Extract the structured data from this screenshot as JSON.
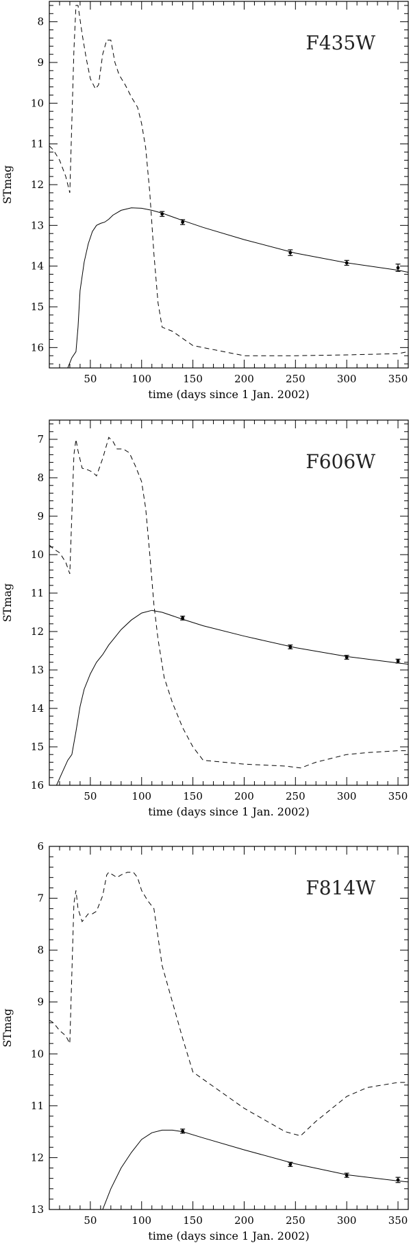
{
  "chart_data": [
    {
      "type": "line",
      "title": "",
      "annotation": "F435W",
      "xlabel": "time (days since 1 Jan. 2002)",
      "ylabel": "STmag",
      "xlim": [
        10,
        360
      ],
      "ylim": [
        16.5,
        7.5
      ],
      "y_inverted": true,
      "x_ticks": [
        50,
        100,
        150,
        200,
        250,
        300,
        350
      ],
      "y_ticks": [
        8,
        9,
        10,
        11,
        12,
        13,
        14,
        15,
        16
      ],
      "grid": false,
      "series": [
        {
          "style": "solid",
          "x": [
            28,
            32,
            36,
            38,
            40,
            44,
            48,
            52,
            56,
            60,
            64,
            68,
            72,
            80,
            90,
            100,
            110,
            120,
            140,
            160,
            200,
            250,
            300,
            350,
            360
          ],
          "values": [
            16.5,
            16.25,
            16.1,
            15.5,
            14.6,
            13.9,
            13.45,
            13.15,
            13.0,
            12.95,
            12.92,
            12.85,
            12.75,
            12.63,
            12.57,
            12.58,
            12.63,
            12.7,
            12.88,
            13.05,
            13.35,
            13.68,
            13.92,
            14.1,
            14.15
          ]
        },
        {
          "style": "dashed",
          "x": [
            10,
            14,
            20,
            26,
            30,
            34,
            36,
            38,
            42,
            46,
            50,
            55,
            58,
            62,
            66,
            70,
            74,
            78,
            84,
            90,
            96,
            100,
            104,
            108,
            112,
            116,
            120,
            130,
            150,
            200,
            250,
            300,
            350,
            360
          ],
          "values": [
            11.05,
            11.15,
            11.4,
            11.8,
            12.2,
            8.7,
            7.6,
            7.6,
            8.3,
            8.9,
            9.4,
            9.65,
            9.55,
            8.8,
            8.45,
            8.45,
            9.0,
            9.3,
            9.55,
            9.85,
            10.1,
            10.5,
            11.1,
            12.2,
            13.7,
            14.9,
            15.5,
            15.6,
            15.95,
            16.2,
            16.2,
            16.18,
            16.15,
            16.1
          ]
        }
      ],
      "observations": {
        "x": [
          120,
          140,
          245,
          300,
          350
        ],
        "values": [
          12.72,
          12.92,
          13.67,
          13.92,
          14.04
        ],
        "errors": [
          0.06,
          0.06,
          0.07,
          0.06,
          0.09
        ]
      }
    },
    {
      "type": "line",
      "title": "",
      "annotation": "F606W",
      "xlabel": "time (days since 1 Jan. 2002)",
      "ylabel": "STmag",
      "xlim": [
        10,
        360
      ],
      "ylim": [
        16,
        6.5
      ],
      "y_inverted": true,
      "x_ticks": [
        50,
        100,
        150,
        200,
        250,
        300,
        350
      ],
      "y_ticks": [
        7,
        8,
        9,
        10,
        11,
        12,
        13,
        14,
        15,
        16
      ],
      "grid": false,
      "series": [
        {
          "style": "solid",
          "x": [
            17,
            22,
            28,
            32,
            36,
            40,
            44,
            50,
            56,
            62,
            68,
            74,
            80,
            90,
            100,
            110,
            120,
            140,
            160,
            200,
            250,
            300,
            350,
            360
          ],
          "values": [
            16.0,
            15.7,
            15.35,
            15.2,
            14.6,
            13.95,
            13.5,
            13.1,
            12.8,
            12.6,
            12.35,
            12.15,
            11.95,
            11.7,
            11.52,
            11.45,
            11.5,
            11.68,
            11.85,
            12.12,
            12.42,
            12.65,
            12.82,
            12.85
          ]
        },
        {
          "style": "dashed",
          "x": [
            10,
            14,
            20,
            26,
            30,
            34,
            36,
            38,
            42,
            48,
            52,
            56,
            62,
            68,
            72,
            76,
            82,
            88,
            94,
            100,
            104,
            108,
            112,
            116,
            122,
            130,
            140,
            150,
            160,
            200,
            240,
            255,
            270,
            300,
            320,
            350,
            360
          ],
          "values": [
            9.75,
            9.85,
            9.95,
            10.2,
            10.5,
            7.4,
            7.0,
            7.3,
            7.75,
            7.8,
            7.85,
            7.95,
            7.5,
            6.95,
            7.05,
            7.25,
            7.25,
            7.35,
            7.7,
            8.1,
            8.8,
            10.0,
            11.3,
            12.2,
            13.2,
            13.85,
            14.5,
            15.0,
            15.35,
            15.45,
            15.5,
            15.55,
            15.4,
            15.2,
            15.15,
            15.1,
            15.1
          ]
        }
      ],
      "observations": {
        "x": [
          140,
          245,
          300,
          350
        ],
        "values": [
          11.65,
          12.4,
          12.67,
          12.77
        ],
        "errors": [
          0.05,
          0.05,
          0.05,
          0.05
        ]
      }
    },
    {
      "type": "line",
      "title": "",
      "annotation": "F814W",
      "xlabel": "time (days since 1 Jan. 2002)",
      "ylabel": "STmag",
      "xlim": [
        10,
        360
      ],
      "ylim": [
        13,
        6
      ],
      "y_inverted": true,
      "x_ticks": [
        50,
        100,
        150,
        200,
        250,
        300,
        350
      ],
      "y_ticks": [
        6,
        7,
        8,
        9,
        10,
        11,
        12,
        13
      ],
      "grid": false,
      "series": [
        {
          "style": "solid",
          "x": [
            62,
            70,
            80,
            90,
            100,
            110,
            120,
            130,
            140,
            160,
            200,
            250,
            300,
            350,
            360
          ],
          "values": [
            13.0,
            12.6,
            12.2,
            11.9,
            11.65,
            11.52,
            11.47,
            11.47,
            11.5,
            11.62,
            11.85,
            12.12,
            12.33,
            12.45,
            12.47
          ]
        },
        {
          "style": "dashed",
          "x": [
            10,
            14,
            20,
            26,
            30,
            34,
            36,
            38,
            42,
            48,
            52,
            56,
            62,
            66,
            68,
            72,
            76,
            80,
            86,
            92,
            96,
            100,
            106,
            112,
            120,
            130,
            140,
            150,
            200,
            240,
            255,
            270,
            300,
            320,
            350,
            360
          ],
          "values": [
            9.35,
            9.4,
            9.55,
            9.65,
            9.8,
            7.1,
            6.85,
            7.2,
            7.45,
            7.3,
            7.3,
            7.25,
            6.95,
            6.55,
            6.5,
            6.55,
            6.6,
            6.55,
            6.5,
            6.5,
            6.6,
            6.85,
            7.05,
            7.2,
            8.3,
            9.0,
            9.7,
            10.35,
            11.05,
            11.5,
            11.58,
            11.3,
            10.82,
            10.65,
            10.55,
            10.55
          ]
        }
      ],
      "observations": {
        "x": [
          140,
          245,
          300,
          350
        ],
        "values": [
          11.49,
          12.13,
          12.34,
          12.43
        ],
        "errors": [
          0.04,
          0.04,
          0.04,
          0.05
        ]
      }
    }
  ]
}
